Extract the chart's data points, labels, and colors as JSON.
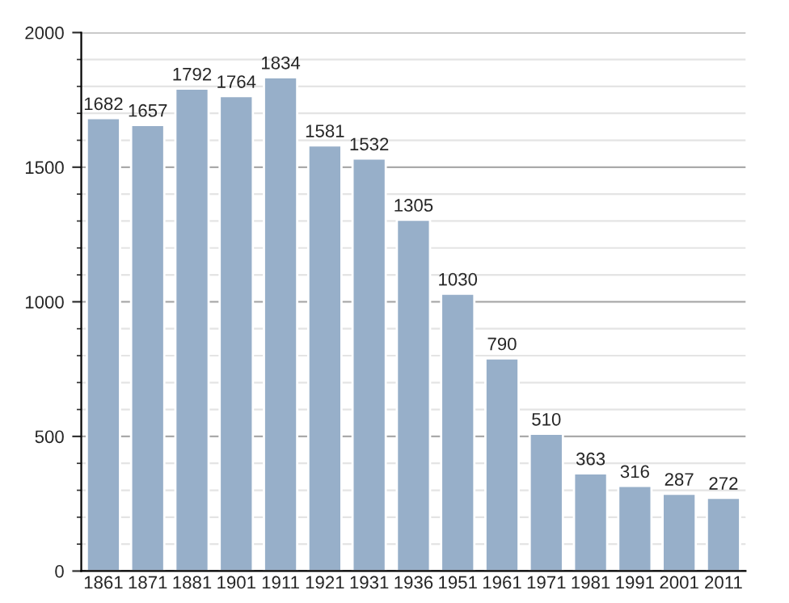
{
  "chart_data": {
    "type": "bar",
    "categories": [
      "1861",
      "1871",
      "1881",
      "1901",
      "1911",
      "1921",
      "1931",
      "1936",
      "1951",
      "1961",
      "1971",
      "1981",
      "1991",
      "2001",
      "2011"
    ],
    "values": [
      1682,
      1657,
      1792,
      1764,
      1834,
      1581,
      1532,
      1305,
      1030,
      790,
      510,
      363,
      316,
      287,
      272
    ],
    "color": "#97afc9",
    "ylim": [
      0,
      2000
    ],
    "yticks": [
      0,
      500,
      1000,
      1500,
      2000
    ],
    "grid": "y",
    "data_labels": true
  }
}
